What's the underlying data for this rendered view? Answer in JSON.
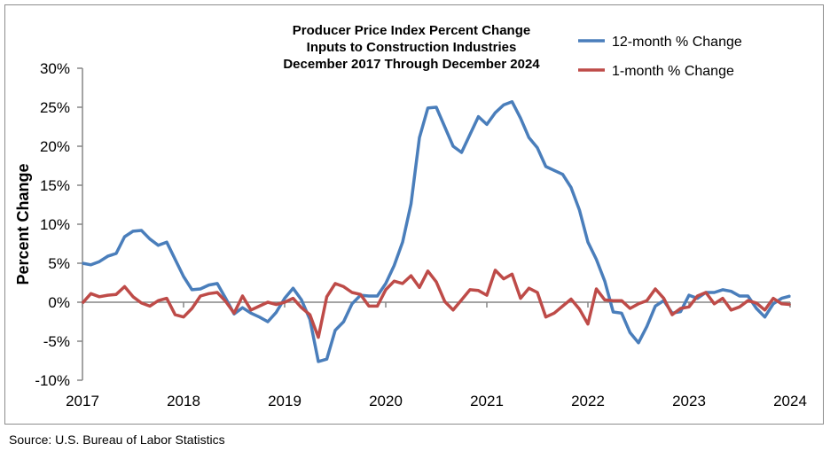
{
  "chart_data": {
    "type": "line",
    "title": [
      "Producer Price Index Percent Change",
      "Inputs to Construction Industries",
      "December 2017 Through December 2024"
    ],
    "ylabel": "Percent Change",
    "xlabel": "",
    "x_tick_labels": [
      "2017",
      "2018",
      "2019",
      "2020",
      "2021",
      "2022",
      "2023",
      "2024"
    ],
    "y_tick_labels": [
      "30%",
      "25%",
      "20%",
      "15%",
      "10%",
      "5%",
      "0%",
      "-5%",
      "-10%"
    ],
    "ylim": [
      -10,
      30
    ],
    "y_unit": "%",
    "grid": false,
    "legend_position": "top-right",
    "series": [
      {
        "name": "12-month % Change",
        "color": "#4a7ebb",
        "values": [
          5.0,
          4.8,
          5.2,
          5.9,
          6.25,
          8.4,
          9.1,
          9.2,
          8.1,
          7.3,
          7.7,
          5.5,
          3.3,
          1.6,
          1.7,
          2.2,
          2.4,
          0.5,
          -1.5,
          -0.7,
          -1.4,
          -1.9,
          -2.5,
          -1.3,
          0.5,
          1.8,
          0.3,
          -2.2,
          -7.6,
          -7.3,
          -3.6,
          -2.5,
          -0.2,
          0.9,
          0.8,
          0.8,
          2.4,
          4.7,
          7.7,
          12.6,
          21.1,
          24.9,
          25.0,
          22.5,
          20.0,
          19.2,
          21.5,
          23.8,
          22.8,
          24.3,
          25.3,
          25.7,
          23.6,
          21.1,
          19.8,
          17.4,
          16.9,
          16.4,
          14.7,
          11.8,
          7.7,
          5.5,
          2.7,
          -1.25,
          -1.4,
          -3.9,
          -5.2,
          -3.1,
          -0.5,
          0.2,
          -1.4,
          -1.2,
          0.9,
          0.5,
          1.25,
          1.25,
          1.6,
          1.4,
          0.8,
          0.8,
          -0.8,
          -1.9,
          -0.2,
          0.5,
          0.8
        ]
      },
      {
        "name": "1-month % Change",
        "color": "#be4b48",
        "values": [
          -0.1,
          1.1,
          0.7,
          0.9,
          1.0,
          2.0,
          0.7,
          -0.1,
          -0.5,
          0.2,
          0.5,
          -1.6,
          -1.9,
          -0.8,
          0.8,
          1.1,
          1.25,
          0.1,
          -1.4,
          0.8,
          -1.0,
          -0.5,
          0.0,
          -0.3,
          0.0,
          0.5,
          -0.7,
          -1.6,
          -4.5,
          0.7,
          2.4,
          2.0,
          1.25,
          1.0,
          -0.5,
          -0.5,
          1.6,
          2.7,
          2.4,
          3.4,
          1.9,
          4.0,
          2.6,
          0.1,
          -1.0,
          0.3,
          1.6,
          1.5,
          0.9,
          4.1,
          3.0,
          3.6,
          0.5,
          1.8,
          1.25,
          -1.9,
          -1.4,
          -0.5,
          0.4,
          -0.9,
          -2.8,
          1.7,
          0.3,
          0.2,
          0.2,
          -0.8,
          -0.2,
          0.2,
          1.7,
          0.5,
          -1.6,
          -0.8,
          -0.6,
          0.8,
          1.25,
          -0.2,
          0.5,
          -1.0,
          -0.6,
          0.2,
          -0.1,
          -1.0,
          0.5,
          -0.2,
          -0.3
        ]
      }
    ]
  },
  "source": "Source: U.S. Bureau of Labor Statistics"
}
